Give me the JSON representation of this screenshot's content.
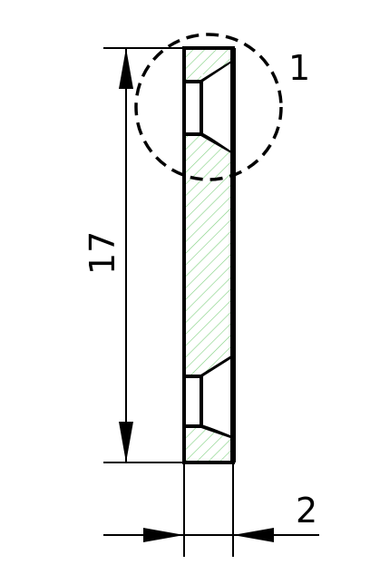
{
  "dimensions": {
    "height_label": "17",
    "thickness_label": "2"
  },
  "callout": {
    "label": "1"
  },
  "colors": {
    "hatch": "#7fd07f",
    "line": "#000000",
    "background": "#ffffff"
  }
}
